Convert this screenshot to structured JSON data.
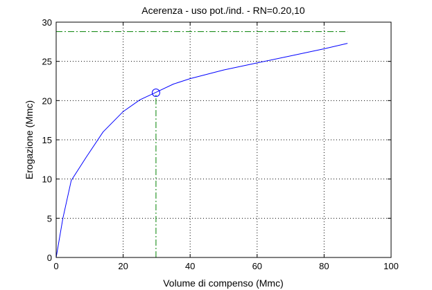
{
  "chart_data": {
    "type": "line",
    "title": "Acerenza  -  uso pot./ind.  -   RN=0.20,10",
    "xlabel": "Volume di compenso (Mmc)",
    "ylabel": "Erogazione (Mmc)",
    "xlim": [
      0,
      100
    ],
    "ylim": [
      0,
      30
    ],
    "xticks": [
      0,
      20,
      40,
      60,
      80,
      100
    ],
    "yticks": [
      0,
      5,
      10,
      15,
      20,
      25,
      30
    ],
    "grid": true,
    "series": [
      {
        "color": "#0000ff",
        "x": [
          0,
          2,
          4.5,
          9,
          14,
          20,
          25,
          30,
          35,
          40,
          50,
          60,
          70,
          80,
          87
        ],
        "y": [
          0,
          5,
          9.8,
          12.8,
          16,
          18.6,
          20.1,
          21.1,
          22.1,
          22.8,
          23.9,
          24.8,
          25.7,
          26.6,
          27.3
        ]
      }
    ],
    "marker": {
      "x": 29.8,
      "y": 21.0,
      "shape": "circle",
      "color": "#0000ff"
    },
    "reference_lines": [
      {
        "orientation": "horizontal",
        "y": 28.8,
        "from_x": 0,
        "to_x": 87,
        "style": "dash-dot",
        "color": "#008000"
      },
      {
        "orientation": "vertical",
        "x": 29.8,
        "from_y": 0,
        "to_y": 21.0,
        "style": "dash-dot",
        "color": "#008000"
      }
    ]
  }
}
